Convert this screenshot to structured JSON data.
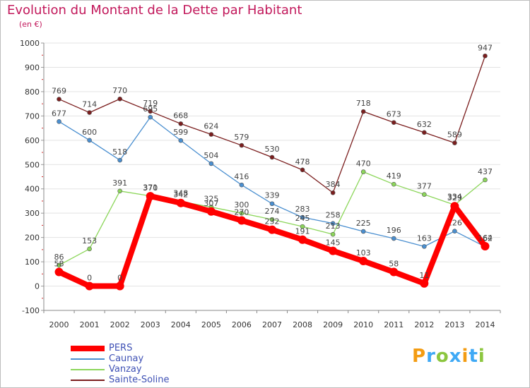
{
  "title": "Evolution du Montant de la Dette par Habitant",
  "unit": "(en €)",
  "logo": {
    "text": "Proxiti",
    "letters": [
      {
        "ch": "P",
        "color": "#f39c12"
      },
      {
        "ch": "r",
        "color": "#3fa9f5"
      },
      {
        "ch": "o",
        "color": "#8cc63f"
      },
      {
        "ch": "x",
        "color": "#3fa9f5"
      },
      {
        "ch": "i",
        "color": "#f39c12"
      },
      {
        "ch": "t",
        "color": "#3fa9f5"
      },
      {
        "ch": "i",
        "color": "#8cc63f"
      }
    ]
  },
  "chart_data": {
    "type": "line",
    "title": "Evolution du Montant de la Dette par Habitant",
    "ylabel": "(en €)",
    "xlabel": "",
    "x": [
      "2000",
      "2001",
      "2002",
      "2003",
      "2004",
      "2005",
      "2006",
      "2007",
      "2008",
      "2009",
      "2010",
      "2011",
      "2012",
      "2013",
      "2014"
    ],
    "ylim": [
      -100,
      1000
    ],
    "yticks": [
      -100,
      0,
      100,
      200,
      300,
      400,
      500,
      600,
      700,
      800,
      900,
      1000
    ],
    "grid": true,
    "legend": "bottom-left",
    "series": [
      {
        "name": "Sainte-Soline",
        "color": "#7b1e1e",
        "values": [
          769,
          714,
          770,
          719,
          668,
          624,
          579,
          530,
          478,
          384,
          718,
          673,
          632,
          589,
          947
        ]
      },
      {
        "name": "Caunay",
        "color": "#4a8fd0",
        "values": [
          677,
          600,
          518,
          695,
          599,
          504,
          416,
          339,
          283,
          258,
          225,
          196,
          163,
          226,
          162
        ]
      },
      {
        "name": "Vanzay",
        "color": "#8cd65a",
        "values": [
          86,
          153,
          391,
          371,
          348,
          325,
          300,
          274,
          245,
          213,
          470,
          419,
          377,
          334,
          437
        ]
      },
      {
        "name": "PERS",
        "color": "#ff0000",
        "values": [
          58,
          0,
          0,
          370,
          342,
          307,
          270,
          232,
          191,
          145,
          103,
          58,
          11,
          329,
          164
        ]
      }
    ]
  }
}
